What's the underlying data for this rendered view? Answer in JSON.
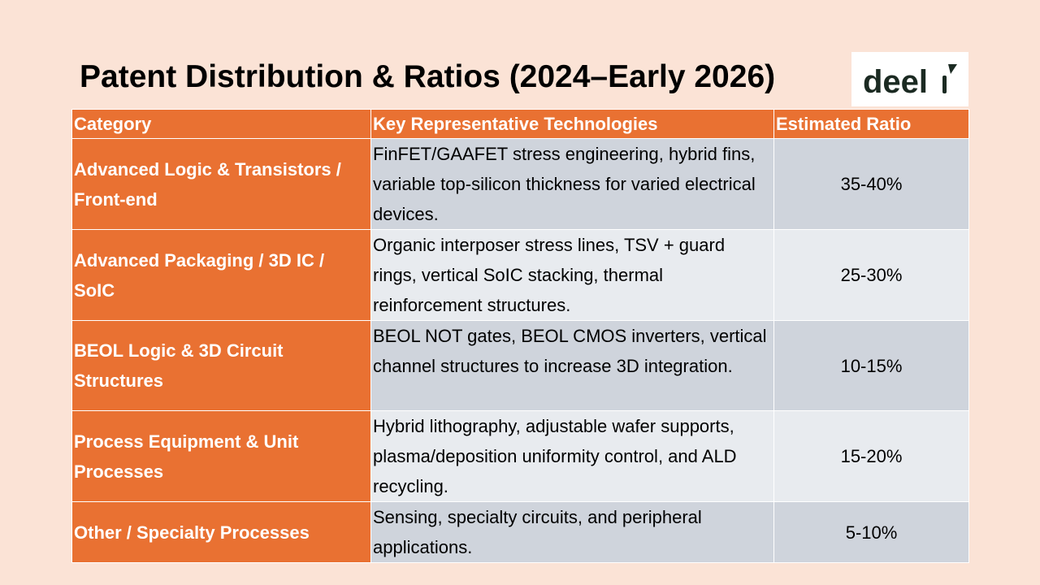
{
  "slide": {
    "title": "Patent Distribution & Ratios (2024–Early 2026)",
    "logo": {
      "text": "deel",
      "icon": "deel-logo-icon"
    }
  },
  "table": {
    "headers": [
      "Category",
      "Key Representative Technologies",
      "Estimated Ratio"
    ],
    "rows": [
      {
        "category": "Advanced Logic & Transistors / Front-end",
        "technologies": "FinFET/GAAFET stress engineering, hybrid fins, variable top-silicon thickness for varied electrical devices.",
        "ratio": "35-40%"
      },
      {
        "category": "Advanced Packaging / 3D IC / SoIC",
        "technologies": "Organic interposer stress lines, TSV + guard rings, vertical SoIC stacking, thermal reinforcement structures.",
        "ratio": "25-30%"
      },
      {
        "category": "BEOL Logic & 3D Circuit Structures",
        "technologies": "BEOL NOT gates, BEOL CMOS inverters, vertical channel structures to increase 3D integration.",
        "ratio": "10-15%"
      },
      {
        "category": "Process Equipment & Unit Processes",
        "technologies": "Hybrid lithography, adjustable wafer supports, plasma/deposition uniformity control, and ALD recycling.",
        "ratio": "15-20%"
      },
      {
        "category": "Other / Specialty Processes",
        "technologies": "Sensing, specialty circuits, and peripheral applications.",
        "ratio": "5-10%"
      }
    ]
  },
  "colors": {
    "background": "#fbe3d6",
    "accent": "#e97132",
    "row_dark": "#cfd4dc",
    "row_light": "#e8ebef",
    "logo_text": "#1b2a22"
  }
}
